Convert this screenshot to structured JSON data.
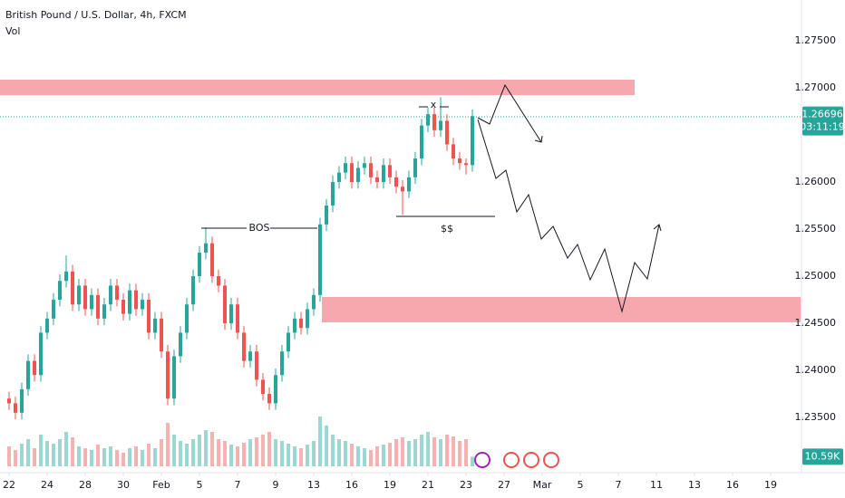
{
  "chart_data": {
    "type": "candlestick",
    "title": "British Pound / U.S. Dollar, 4h, FXCM",
    "subtitle": "Vol",
    "up_color": "#26a69a",
    "down_color": "#ef5350",
    "x": [
      0,
      2,
      4,
      6,
      8,
      10,
      12,
      14,
      16,
      18,
      20,
      22,
      24,
      26,
      28,
      30,
      32,
      34,
      36,
      38,
      40,
      42,
      44,
      46,
      48,
      50,
      52,
      54,
      56,
      58,
      60,
      62,
      64,
      66,
      68,
      70,
      72,
      74,
      76,
      78,
      80,
      82,
      84,
      86,
      88,
      90,
      92,
      94,
      96,
      98,
      100,
      102,
      104,
      106,
      108,
      110,
      112,
      114,
      116,
      118,
      120,
      122,
      124,
      126,
      128,
      130,
      132,
      134,
      136,
      138,
      140,
      142,
      144,
      146
    ],
    "open": [
      1.237,
      1.2365,
      1.2355,
      1.238,
      1.241,
      1.2395,
      1.244,
      1.2455,
      1.2475,
      1.2495,
      1.2505,
      1.247,
      1.249,
      1.2465,
      1.248,
      1.2455,
      1.247,
      1.249,
      1.2475,
      1.246,
      1.2485,
      1.2465,
      1.2475,
      1.244,
      1.2455,
      1.242,
      1.237,
      1.2415,
      1.244,
      1.247,
      1.25,
      1.2525,
      1.2535,
      1.25,
      1.249,
      1.245,
      1.247,
      1.244,
      1.241,
      1.242,
      1.239,
      1.2375,
      1.2365,
      1.2395,
      1.242,
      1.244,
      1.2455,
      1.2445,
      1.2465,
      1.248,
      1.2555,
      1.2575,
      1.26,
      1.261,
      1.262,
      1.26,
      1.2615,
      1.262,
      1.2605,
      1.26,
      1.2618,
      1.2605,
      1.2595,
      1.259,
      1.2605,
      1.2625,
      1.266,
      1.2672,
      1.2655,
      1.2665,
      1.264,
      1.2625,
      1.262,
      1.2618
    ],
    "high": [
      1.2377,
      1.2372,
      1.2387,
      1.2417,
      1.2417,
      1.2447,
      1.2462,
      1.2482,
      1.2502,
      1.2522,
      1.2512,
      1.2497,
      1.2497,
      1.2487,
      1.2487,
      1.2477,
      1.2497,
      1.2497,
      1.2482,
      1.2492,
      1.2492,
      1.2482,
      1.2482,
      1.2462,
      1.2462,
      1.2427,
      1.2422,
      1.2447,
      1.2477,
      1.2507,
      1.2532,
      1.2552,
      1.2542,
      1.2507,
      1.2497,
      1.2477,
      1.2477,
      1.2447,
      1.2427,
      1.2427,
      1.2397,
      1.2382,
      1.2402,
      1.2427,
      1.2447,
      1.2462,
      1.2462,
      1.2472,
      1.2487,
      1.2562,
      1.2582,
      1.2607,
      1.2617,
      1.2627,
      1.2627,
      1.2622,
      1.2627,
      1.2627,
      1.2612,
      1.2625,
      1.2625,
      1.2612,
      1.2602,
      1.2612,
      1.2632,
      1.2667,
      1.2679,
      1.2679,
      1.269,
      1.2672,
      1.2647,
      1.2632,
      1.2625,
      1.2677
    ],
    "low": [
      1.2358,
      1.2348,
      1.2348,
      1.2373,
      1.2388,
      1.2388,
      1.2433,
      1.2448,
      1.2468,
      1.2488,
      1.2463,
      1.2463,
      1.2458,
      1.2458,
      1.2448,
      1.2448,
      1.2463,
      1.2468,
      1.2453,
      1.2453,
      1.2458,
      1.2458,
      1.2433,
      1.2433,
      1.2413,
      1.2363,
      1.2363,
      1.2408,
      1.2433,
      1.2463,
      1.2493,
      1.2518,
      1.2493,
      1.2483,
      1.2443,
      1.2443,
      1.2433,
      1.2403,
      1.2403,
      1.2383,
      1.2368,
      1.2358,
      1.2358,
      1.2388,
      1.2413,
      1.2433,
      1.2438,
      1.2438,
      1.2458,
      1.2473,
      1.2548,
      1.2568,
      1.2593,
      1.2603,
      1.2593,
      1.2593,
      1.2608,
      1.2598,
      1.2593,
      1.2593,
      1.2598,
      1.2588,
      1.2565,
      1.2583,
      1.2598,
      1.2618,
      1.2653,
      1.2648,
      1.2648,
      1.2633,
      1.2618,
      1.2613,
      1.2608,
      1.2611
    ],
    "close": [
      1.2365,
      1.2355,
      1.238,
      1.241,
      1.2395,
      1.244,
      1.2455,
      1.2475,
      1.2495,
      1.2505,
      1.247,
      1.249,
      1.2465,
      1.248,
      1.2455,
      1.247,
      1.249,
      1.2475,
      1.246,
      1.2485,
      1.2465,
      1.2475,
      1.244,
      1.2455,
      1.242,
      1.237,
      1.2415,
      1.244,
      1.247,
      1.25,
      1.2525,
      1.2535,
      1.25,
      1.249,
      1.245,
      1.247,
      1.244,
      1.241,
      1.242,
      1.239,
      1.2375,
      1.2365,
      1.2395,
      1.242,
      1.244,
      1.2455,
      1.2445,
      1.2465,
      1.248,
      1.2555,
      1.2575,
      1.26,
      1.261,
      1.262,
      1.26,
      1.2615,
      1.262,
      1.2605,
      1.26,
      1.2618,
      1.2605,
      1.2595,
      1.259,
      1.2605,
      1.2625,
      1.266,
      1.2672,
      1.2655,
      1.2665,
      1.264,
      1.2625,
      1.262,
      1.2618,
      1.267
    ],
    "volume": {
      "values": [
        22,
        18,
        25,
        30,
        20,
        35,
        28,
        25,
        30,
        38,
        32,
        22,
        20,
        18,
        24,
        20,
        22,
        18,
        15,
        20,
        22,
        18,
        25,
        20,
        30,
        48,
        35,
        28,
        25,
        30,
        35,
        40,
        38,
        30,
        28,
        24,
        22,
        26,
        30,
        32,
        35,
        38,
        30,
        28,
        25,
        22,
        20,
        24,
        28,
        55,
        45,
        35,
        30,
        28,
        25,
        22,
        20,
        18,
        22,
        24,
        26,
        30,
        32,
        28,
        30,
        35,
        38,
        32,
        30,
        35,
        33,
        28,
        30,
        10.59
      ],
      "last_label": "10.59K",
      "ylim": [
        0,
        60
      ]
    },
    "xlim": [
      -2.86,
      245.71
    ],
    "ylim": [
      1.22981,
      1.27933
    ],
    "yticks": [
      {
        "value": 1.275,
        "label": "1.27500"
      },
      {
        "value": 1.27,
        "label": "1.27000"
      },
      {
        "value": 1.26,
        "label": "1.26000"
      },
      {
        "value": 1.255,
        "label": "1.25500"
      },
      {
        "value": 1.25,
        "label": "1.25000"
      },
      {
        "value": 1.245,
        "label": "1.24500"
      },
      {
        "value": 1.24,
        "label": "1.24000"
      },
      {
        "value": 1.235,
        "label": "1.23500"
      }
    ],
    "xticks": [
      {
        "value": 0,
        "label": "22"
      },
      {
        "value": 12,
        "label": "24"
      },
      {
        "value": 24,
        "label": "28"
      },
      {
        "value": 36,
        "label": "30"
      },
      {
        "value": 48,
        "label": "Feb"
      },
      {
        "value": 60,
        "label": "5"
      },
      {
        "value": 72,
        "label": "7"
      },
      {
        "value": 84,
        "label": "9"
      },
      {
        "value": 96,
        "label": "13"
      },
      {
        "value": 108,
        "label": "16"
      },
      {
        "value": 120,
        "label": "19"
      },
      {
        "value": 132,
        "label": "21"
      },
      {
        "value": 144,
        "label": "23"
      },
      {
        "value": 156,
        "label": "27"
      },
      {
        "value": 168,
        "label": "Mar"
      },
      {
        "value": 180,
        "label": "5"
      },
      {
        "value": 192,
        "label": "7"
      },
      {
        "value": 204,
        "label": "11"
      },
      {
        "value": 216,
        "label": "13"
      },
      {
        "value": 228,
        "label": "16"
      },
      {
        "value": 240,
        "label": "19"
      }
    ],
    "current_price": {
      "value": 1.26696,
      "label": "1.26696",
      "countdown": "03:11:19"
    },
    "annotations": {
      "bos": "BOS",
      "liquidity": "$$",
      "peak": "x"
    }
  }
}
